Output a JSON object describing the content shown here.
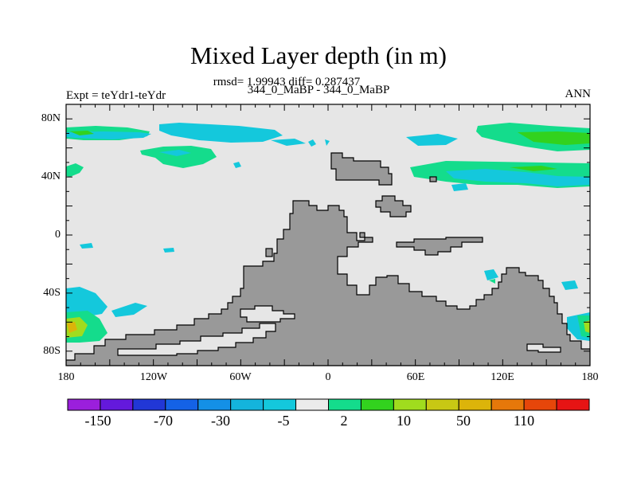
{
  "plot": {
    "title": "Mixed Layer depth (in m)",
    "stats": "rmsd= 1.99943 diff= 0.287437",
    "subtitle": "344_0_MaBP - 344_0_MaBP",
    "left_label": "Expt = teYdr1-teYdr",
    "right_label": "ANN"
  },
  "axes": {
    "y_ticks": [
      "80N",
      "40N",
      "0",
      "40S",
      "80S"
    ],
    "x_ticks": [
      "180",
      "120W",
      "60W",
      "0",
      "60E",
      "120E",
      "180"
    ]
  },
  "colorbar": {
    "colors": [
      "#9b1fdc",
      "#6419dc",
      "#2137d6",
      "#1462e6",
      "#1490e6",
      "#14b4dc",
      "#14c8dc",
      "#ebebeb",
      "#14dc8c",
      "#32d21e",
      "#a0dc1e",
      "#c8c814",
      "#dcb40a",
      "#e6780a",
      "#e6460a",
      "#e61414"
    ],
    "labels": [
      "-150",
      "-70",
      "-30",
      "-5",
      "2",
      "10",
      "50",
      "110"
    ]
  },
  "map_colors": {
    "ocean": "#e6e6e6",
    "land": "#999999"
  }
}
